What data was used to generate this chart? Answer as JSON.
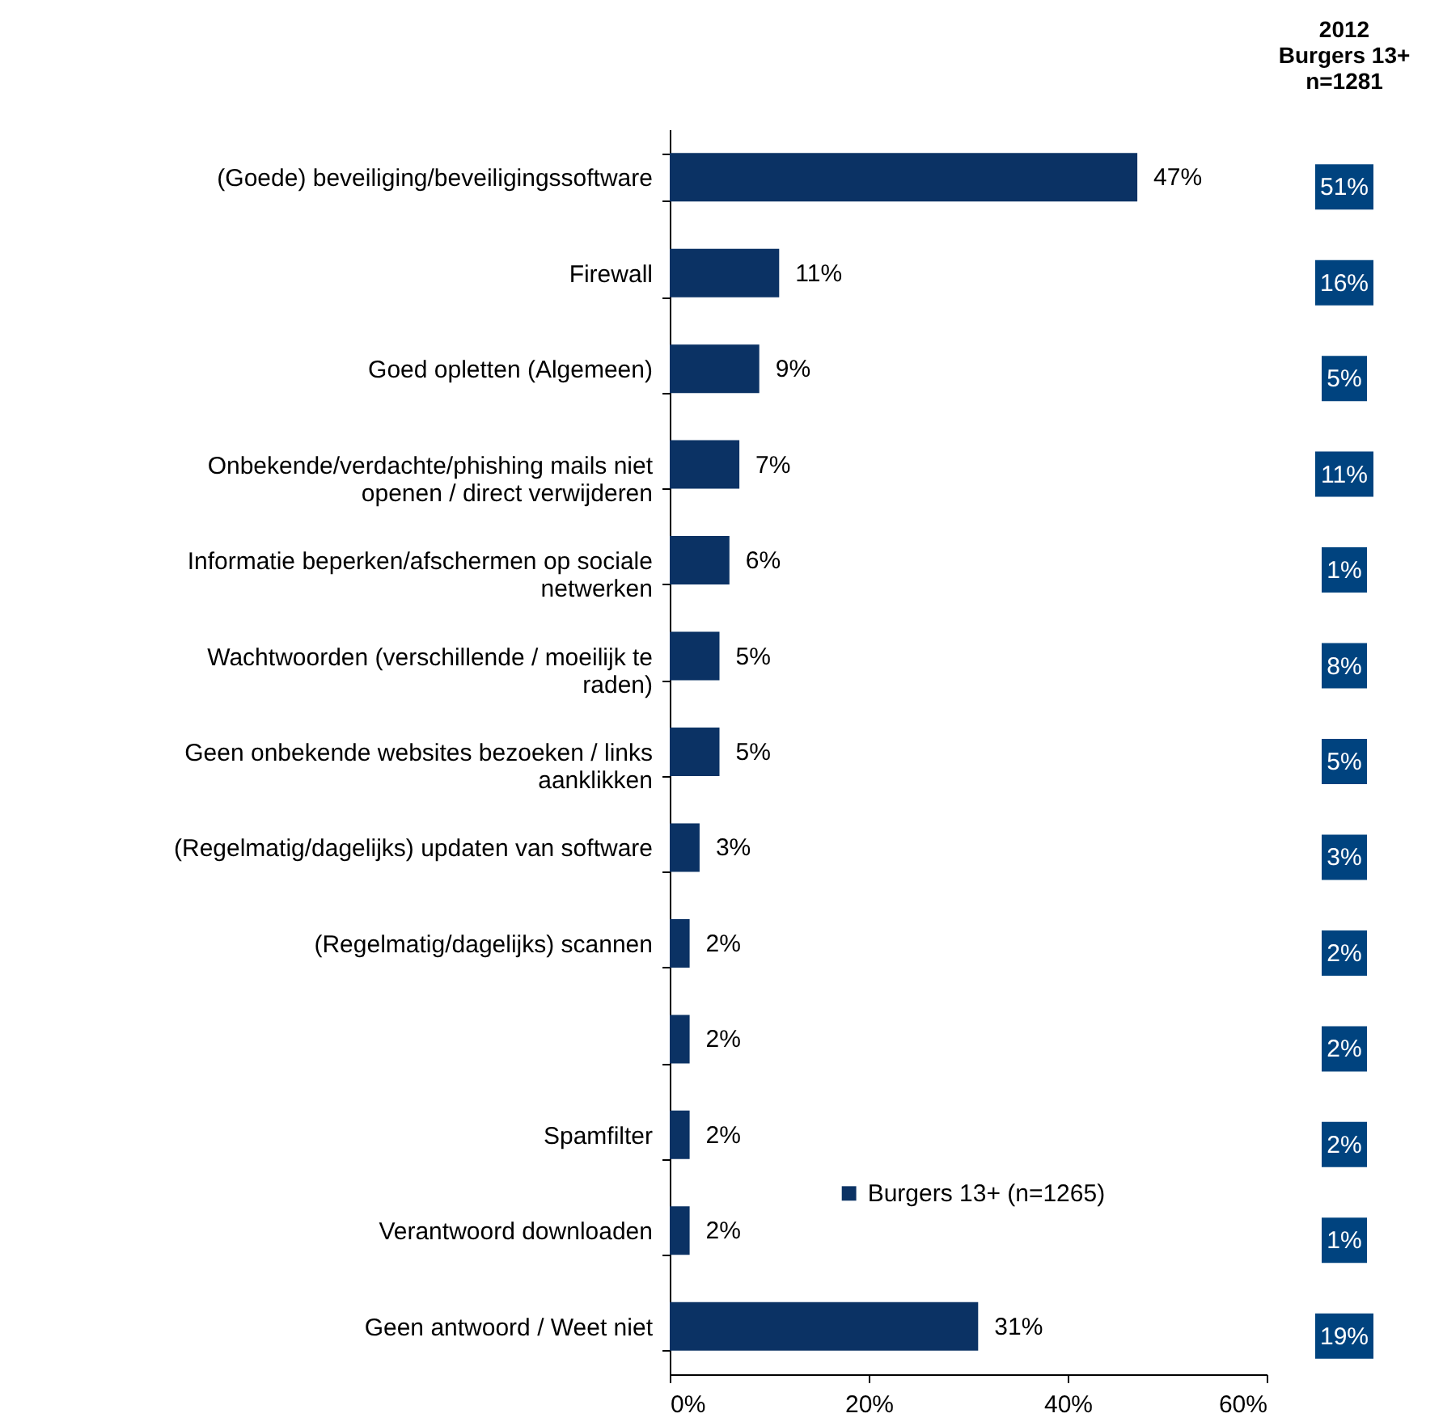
{
  "chart_data": {
    "type": "bar",
    "orientation": "horizontal",
    "categories": [
      "(Goede) beveiliging/beveiligingssoftware",
      "Firewall",
      "Goed opletten (Algemeen)",
      "Onbekende/verdachte/phishing mails niet openen / direct verwijderen",
      "Informatie beperken/afschermen op sociale netwerken",
      "Wachtwoorden (verschillende / moeilijk te raden)",
      "Geen onbekende websites bezoeken / links aanklikken",
      "(Regelmatig/dagelijks) updaten van software",
      "(Regelmatig/dagelijks) scannen",
      null,
      "Spamfilter",
      "Verantwoord downloaden",
      "Geen antwoord / Weet niet"
    ],
    "series": [
      {
        "name": "Burgers 13+  (n=1265)",
        "color": "#0b3264",
        "values": [
          47,
          11,
          9,
          7,
          6,
          5,
          5,
          3,
          2,
          2,
          2,
          2,
          31
        ],
        "value_labels": [
          "47%",
          "11%",
          "9%",
          "7%",
          "6%",
          "5%",
          "5%",
          "3%",
          "2%",
          "2%",
          "2%",
          "2%",
          "31%"
        ]
      }
    ],
    "xlim": [
      0,
      60
    ],
    "xticks": [
      {
        "value": 0,
        "label": "0%"
      },
      {
        "value": 20,
        "label": "20%"
      },
      {
        "value": 40,
        "label": "40%"
      },
      {
        "value": 60,
        "label": "60%"
      }
    ],
    "grid": false,
    "legend": "bottom",
    "annotations": [
      "2012\nBurgers 13+\nn=1281",
      "51%",
      "16%",
      "5%",
      "11%",
      "1%",
      "8%",
      "5%",
      "3%",
      "2%",
      "2%",
      "2%",
      "1%",
      "19%"
    ]
  }
}
